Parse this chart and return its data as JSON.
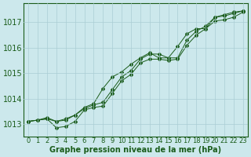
{
  "xlabel": "Graphe pression niveau de la mer (hPa)",
  "background_color": "#cce8ec",
  "grid_color": "#aacdd4",
  "line_color": "#1a5c1a",
  "marker_color": "#1a5c1a",
  "x_hours": [
    0,
    1,
    2,
    3,
    4,
    5,
    6,
    7,
    8,
    9,
    10,
    11,
    12,
    13,
    14,
    15,
    16,
    17,
    18,
    19,
    20,
    21,
    22,
    23
  ],
  "line1": [
    1013.1,
    1013.15,
    1013.2,
    1013.1,
    1013.2,
    1013.35,
    1013.6,
    1013.75,
    1013.85,
    1014.35,
    1014.85,
    1015.1,
    1015.55,
    1015.75,
    1015.75,
    1015.6,
    1015.6,
    1016.3,
    1016.65,
    1016.85,
    1017.2,
    1017.25,
    1017.35,
    1017.45
  ],
  "line2": [
    1013.1,
    1013.15,
    1013.2,
    1012.85,
    1012.9,
    1013.1,
    1013.55,
    1013.65,
    1013.7,
    1014.2,
    1014.7,
    1014.95,
    1015.4,
    1015.55,
    1015.55,
    1015.5,
    1015.55,
    1016.1,
    1016.5,
    1016.75,
    1017.05,
    1017.1,
    1017.2,
    1017.4
  ],
  "line3": [
    1013.1,
    1013.15,
    1013.25,
    1013.1,
    1013.15,
    1013.35,
    1013.65,
    1013.8,
    1014.4,
    1014.85,
    1015.05,
    1015.35,
    1015.6,
    1015.8,
    1015.6,
    1015.6,
    1016.05,
    1016.55,
    1016.75,
    1016.75,
    1017.2,
    1017.3,
    1017.4,
    1017.45
  ],
  "ylim": [
    1012.5,
    1017.75
  ],
  "xlim": [
    -0.5,
    23.5
  ],
  "yticks": [
    1013,
    1014,
    1015,
    1016,
    1017
  ],
  "xtick_labels": [
    "0",
    "1",
    "2",
    "3",
    "4",
    "5",
    "6",
    "7",
    "8",
    "9",
    "10",
    "11",
    "12",
    "13",
    "14",
    "15",
    "16",
    "17",
    "18",
    "19",
    "20",
    "21",
    "22",
    "23"
  ],
  "xlabel_fontsize": 7,
  "ytick_fontsize": 7,
  "xtick_fontsize": 6
}
